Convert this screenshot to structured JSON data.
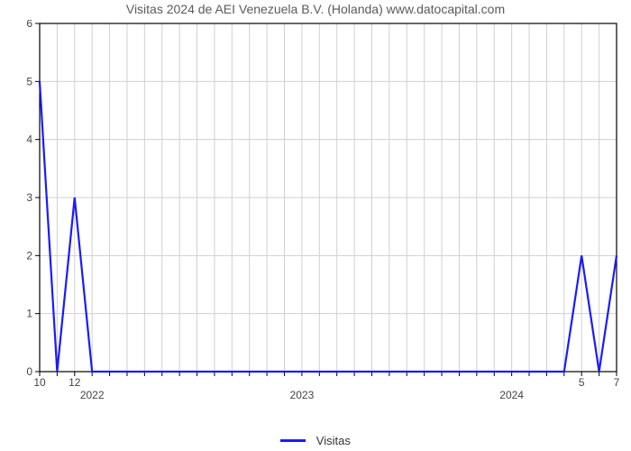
{
  "chart": {
    "type": "line",
    "title": "Visitas 2024 de AEI Venezuela B.V. (Holanda) www.datocapital.com",
    "title_fontsize": 14,
    "title_color": "#5a5a5a",
    "background_color": "#ffffff",
    "plot_border_color": "#000000",
    "grid_color": "#d0d0d0",
    "grid_dash": "0",
    "line_color": "#1a1aff",
    "line_width": 2.2,
    "x_axis": {
      "indices": [
        0,
        1,
        2,
        3,
        4,
        5,
        6,
        7,
        8,
        9,
        10,
        11,
        12,
        13,
        14,
        15,
        16,
        17,
        18,
        19,
        20,
        21,
        22,
        23,
        24,
        25,
        26,
        27,
        28,
        29,
        30,
        31,
        32,
        33
      ],
      "month_ticks": {
        "positions": [
          0,
          2,
          33
        ],
        "labels": [
          "10",
          "12",
          "7"
        ]
      },
      "short_month_ticks": {
        "positions": [
          31
        ],
        "labels": [
          "5"
        ]
      },
      "year_ticks": {
        "positions": [
          3,
          15,
          27
        ],
        "labels": [
          "2022",
          "2023",
          "2024"
        ]
      }
    },
    "y_axis": {
      "min": 0,
      "max": 6,
      "ticks": [
        0,
        1,
        2,
        3,
        4,
        5,
        6
      ]
    },
    "series": {
      "label": "Visitas",
      "values": [
        5,
        0,
        3,
        0,
        0,
        0,
        0,
        0,
        0,
        0,
        0,
        0,
        0,
        0,
        0,
        0,
        0,
        0,
        0,
        0,
        0,
        0,
        0,
        0,
        0,
        0,
        0,
        0,
        0,
        0,
        0,
        2,
        0,
        2
      ]
    }
  }
}
